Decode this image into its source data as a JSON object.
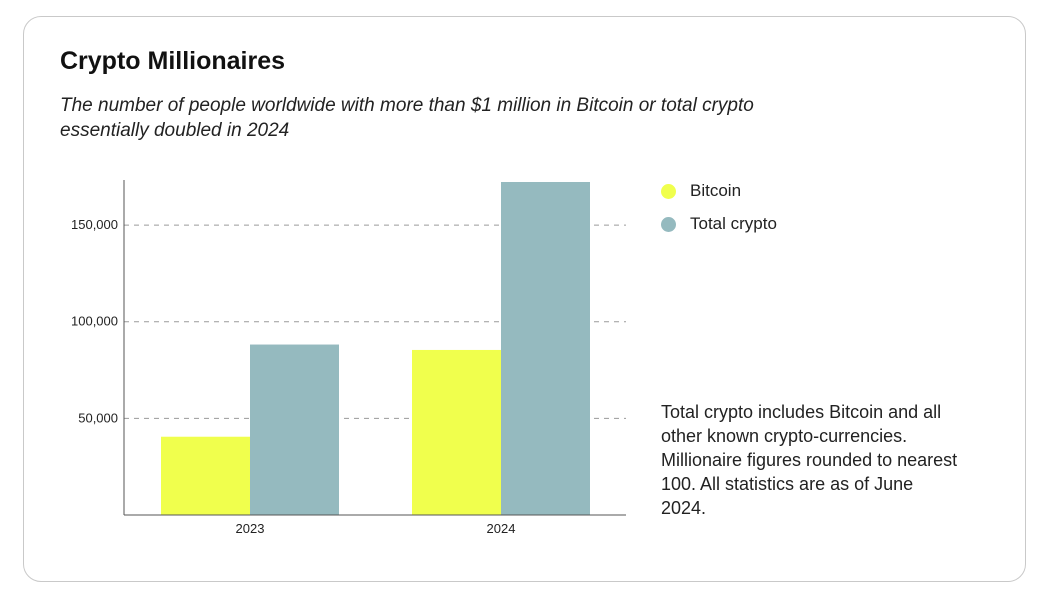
{
  "header": {
    "title": "Crypto Millionaires",
    "subtitle": "The number of people worldwide with more than $1 million in Bitcoin or total crypto essentially doubled in 2024"
  },
  "legend": {
    "items": [
      {
        "label": "Bitcoin",
        "color": "#f0ff4d"
      },
      {
        "label": "Total crypto",
        "color": "#95babf"
      }
    ]
  },
  "note": "Total crypto includes Bitcoin and all other known crypto-currencies. Millionaire figures rounded to nearest 100. All statistics are as of June 2024.",
  "chart_data": {
    "type": "bar",
    "title": "Crypto Millionaires",
    "categories": [
      "2023",
      "2024"
    ],
    "series": [
      {
        "name": "Bitcoin",
        "values": [
          40500,
          85400
        ]
      },
      {
        "name": "Total crypto",
        "values": [
          88200,
          172300
        ]
      }
    ],
    "ylim": [
      0,
      172300
    ],
    "yticks": [
      50000,
      100000,
      150000
    ],
    "ytick_labels": [
      "50,000",
      "100,000",
      "150,000"
    ],
    "grid": "dashed horizontal",
    "legend": "right",
    "xlabel": "",
    "ylabel": ""
  }
}
